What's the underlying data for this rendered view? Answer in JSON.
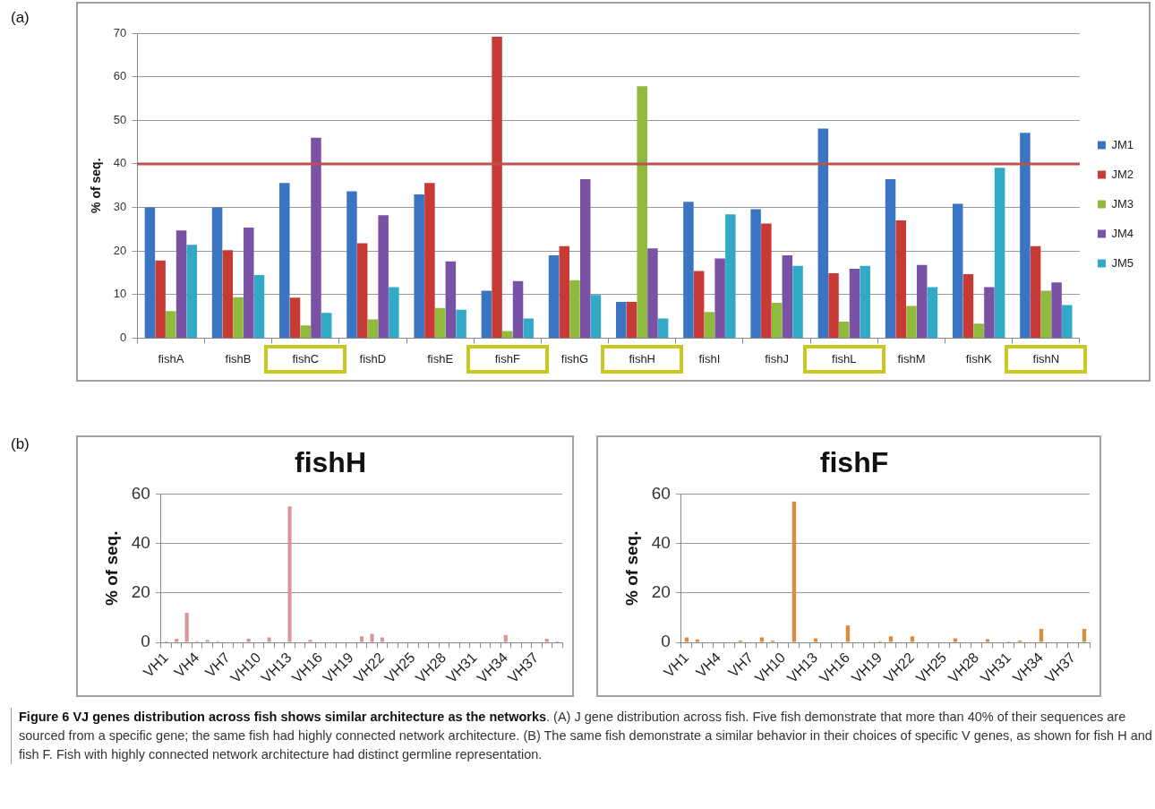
{
  "chart_data": [
    {
      "type": "bar",
      "categories": [
        "fishA",
        "fishB",
        "fishC",
        "fishD",
        "fishE",
        "fishF",
        "fishG",
        "fishH",
        "fishI",
        "fishJ",
        "fishL",
        "fishM",
        "fishK",
        "fishN"
      ],
      "series": [
        {
          "name": "JM1",
          "color": "#3a75c4",
          "values": [
            30,
            30,
            35.6,
            33.7,
            33,
            10.9,
            19,
            8.3,
            31.3,
            29.6,
            48.1,
            36.5,
            30.8,
            47.1
          ]
        },
        {
          "name": "JM2",
          "color": "#c83a36",
          "values": [
            17.8,
            20.2,
            9.3,
            21.8,
            35.6,
            69.2,
            21.1,
            8.3,
            15.4,
            26.3,
            14.9,
            27,
            14.7,
            21.1
          ]
        },
        {
          "name": "JM3",
          "color": "#8fba3e",
          "values": [
            6.2,
            9.4,
            2.9,
            4.3,
            6.9,
            1.6,
            13.3,
            57.8,
            6,
            8.1,
            3.8,
            7.4,
            3.3,
            10.9
          ]
        },
        {
          "name": "JM4",
          "color": "#7a52a5",
          "values": [
            24.7,
            25.4,
            46,
            28.2,
            17.6,
            13.1,
            36.5,
            20.6,
            18.3,
            19,
            15.9,
            16.8,
            11.7,
            12.8
          ]
        },
        {
          "name": "JM5",
          "color": "#33a9c8",
          "values": [
            21.4,
            14.5,
            5.8,
            11.7,
            6.5,
            4.5,
            9.9,
            4.5,
            28.4,
            16.6,
            16.6,
            11.7,
            39.1,
            7.6
          ]
        }
      ],
      "ylabel": "% of seq.",
      "ylim": [
        0,
        70
      ],
      "yticks": [
        0,
        10,
        20,
        30,
        40,
        50,
        60,
        70
      ],
      "grid": "y",
      "legend": "right",
      "ref_lines": [
        {
          "axis": "y",
          "value": 40,
          "color": "#c0504d"
        }
      ],
      "annotations": [
        "(a)"
      ]
    },
    {
      "type": "bar",
      "title": "fishH",
      "categories": [
        "VH1",
        null,
        null,
        "VH4",
        null,
        null,
        "VH7",
        null,
        null,
        "VH10",
        null,
        null,
        "VH13",
        null,
        null,
        "VH16",
        null,
        null,
        "VH19",
        null,
        null,
        "VH22",
        null,
        null,
        "VH25",
        null,
        null,
        "VH28",
        null,
        null,
        "VH31",
        null,
        null,
        "VH34",
        null,
        null,
        "VH37",
        null,
        null
      ],
      "values": [
        0.5,
        1.5,
        12,
        0.5,
        1,
        0.5,
        0,
        0,
        1.5,
        0,
        2,
        0,
        55,
        0,
        1,
        0,
        0,
        0,
        0,
        2.5,
        3.5,
        2,
        0,
        0,
        0,
        0,
        0,
        0,
        0,
        0,
        0,
        0,
        0,
        3,
        0,
        0,
        0,
        1.5,
        0.5
      ],
      "color": "#d99694",
      "ylabel": "% of seq.",
      "ylim": [
        0,
        60
      ],
      "yticks": [
        0,
        20,
        40,
        60
      ],
      "grid": "y",
      "annotations": [
        "(b)"
      ]
    },
    {
      "type": "bar",
      "title": "fishF",
      "categories": [
        "VH1",
        null,
        null,
        "VH4",
        null,
        null,
        "VH7",
        null,
        null,
        "VH10",
        null,
        null,
        "VH13",
        null,
        null,
        "VH16",
        null,
        null,
        "VH19",
        null,
        null,
        "VH22",
        null,
        null,
        "VH25",
        null,
        null,
        "VH28",
        null,
        null,
        "VH31",
        null,
        null,
        "VH34",
        null,
        null,
        "VH37",
        null
      ],
      "values": [
        2,
        1.2,
        0,
        0,
        0,
        0.8,
        0,
        2,
        0.8,
        0,
        57,
        0,
        1.7,
        0,
        0,
        6.9,
        0,
        0,
        0.5,
        2.5,
        0,
        2.5,
        0,
        0,
        0,
        1.7,
        0,
        0,
        1.3,
        0,
        0.4,
        0.8,
        0,
        5.5,
        0,
        0,
        0,
        5.5
      ],
      "color": "#e08a3c",
      "ylabel": "% of seq.",
      "ylim": [
        0,
        60
      ],
      "yticks": [
        0,
        20,
        40,
        60
      ],
      "grid": "y",
      "annotations": [
        "Figure 6 VJ genes distribution across fish shows similar architecture as the networks",
        ". (A) J gene distribution across fish. Five fish demonstrate that more than 40% of their sequences are sourced from a specific gene; the same fish had highly connected network architecture. (B) The same fish demonstrate a similar behavior in their choices of specific V genes, as shown for fish H and fish F. Fish with highly connected network architecture had distinct germline representation."
      ]
    }
  ]
}
